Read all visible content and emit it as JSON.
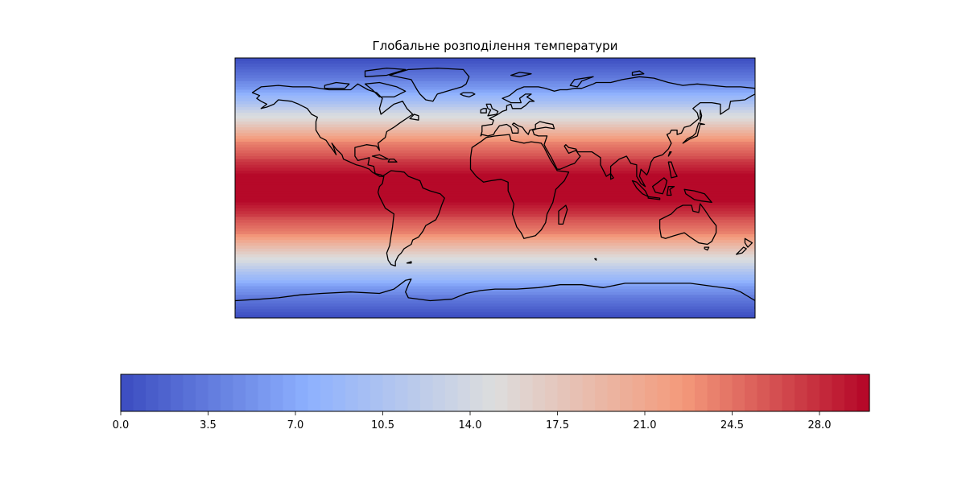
{
  "chart_data": {
    "type": "heatmap",
    "title": "Глобальне розподілення температури",
    "xlabel": "",
    "ylabel": "",
    "projection": "plate carree (equirectangular)",
    "xlim": [
      -180,
      180
    ],
    "ylim": [
      -90,
      90
    ],
    "grid": false,
    "colormap": "coolwarm",
    "colormap_stops": [
      "#3b4cc0",
      "#8db0fe",
      "#dddddd",
      "#f49a7b",
      "#b40426"
    ],
    "field_description_values": {
      "latitudes": [
        -90,
        -70,
        -50,
        -30,
        -10,
        0,
        10,
        30,
        50,
        70,
        90
      ],
      "temperature": [
        0.0,
        5.3,
        14.5,
        24.0,
        29.5,
        30.0,
        29.5,
        24.0,
        14.5,
        5.3,
        0.0
      ]
    },
    "colorbar": {
      "orientation": "horizontal",
      "placement": "bottom",
      "range": [
        0,
        30
      ],
      "levels": 60,
      "ticks": [
        0.0,
        3.5,
        7.0,
        10.5,
        14.0,
        17.5,
        21.0,
        24.5,
        28.0
      ],
      "tick_labels": [
        "0.0",
        "3.5",
        "7.0",
        "10.5",
        "14.0",
        "17.5",
        "21.0",
        "24.5",
        "28.0"
      ]
    },
    "features": [
      "coastlines"
    ]
  }
}
